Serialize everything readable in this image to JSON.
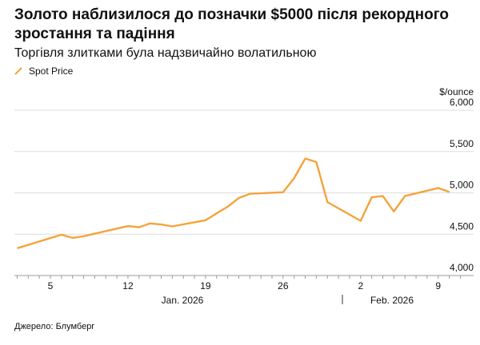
{
  "chart_data": {
    "type": "line",
    "title": "Золото наблизилося до позначки $5000 після рекордного зростання та падіння",
    "subtitle": "Торгівля злитками була надзвичайно волатильною",
    "ylabel": "$/ounce",
    "ylim": [
      4000,
      6000
    ],
    "yticks": [
      4000,
      4500,
      5000,
      5500,
      6000
    ],
    "ytick_labels": [
      "4,000",
      "4,500",
      "5,000",
      "5,500",
      "6,000"
    ],
    "xticks": [
      "2026-01-05",
      "2026-01-12",
      "2026-01-19",
      "2026-01-26",
      "2026-02-02",
      "2026-02-09"
    ],
    "xtick_labels": [
      "5",
      "12",
      "19",
      "26",
      "2",
      "9"
    ],
    "month_labels": [
      "Jan. 2026",
      "Feb. 2026"
    ],
    "grid": true,
    "legend": "top-left",
    "color": "#f5a33c",
    "series": [
      {
        "name": "Spot Price",
        "x": [
          "2026-01-02",
          "2026-01-06",
          "2026-01-07",
          "2026-01-08",
          "2026-01-12",
          "2026-01-13",
          "2026-01-14",
          "2026-01-15",
          "2026-01-16",
          "2026-01-19",
          "2026-01-20",
          "2026-01-21",
          "2026-01-22",
          "2026-01-23",
          "2026-01-26",
          "2026-01-27",
          "2026-01-28",
          "2026-01-29",
          "2026-01-30",
          "2026-02-02",
          "2026-02-03",
          "2026-02-04",
          "2026-02-05",
          "2026-02-06",
          "2026-02-09",
          "2026-02-10"
        ],
        "values": [
          4330,
          4494,
          4455,
          4475,
          4598,
          4585,
          4630,
          4617,
          4594,
          4669,
          4753,
          4833,
          4937,
          4988,
          5008,
          5179,
          5415,
          5373,
          4888,
          4662,
          4946,
          4962,
          4775,
          4962,
          5059,
          5011
        ]
      }
    ]
  },
  "source": "Джерело: Блумберг"
}
